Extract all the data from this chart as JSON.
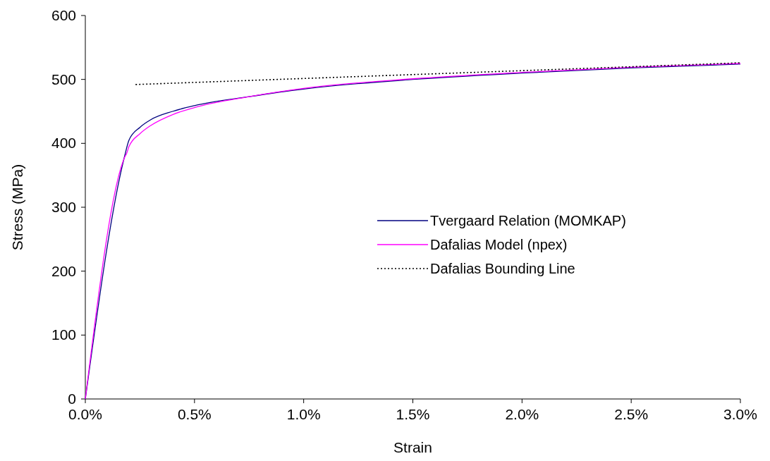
{
  "chart_data": {
    "type": "line",
    "xlabel": "Strain",
    "ylabel": "Stress (MPa)",
    "xlim": [
      0,
      0.03
    ],
    "ylim": [
      0,
      600
    ],
    "xticks": [
      {
        "value": 0,
        "label": "0.0%"
      },
      {
        "value": 0.005,
        "label": "0.5%"
      },
      {
        "value": 0.01,
        "label": "1.0%"
      },
      {
        "value": 0.015,
        "label": "1.5%"
      },
      {
        "value": 0.02,
        "label": "2.0%"
      },
      {
        "value": 0.025,
        "label": "2.5%"
      },
      {
        "value": 0.03,
        "label": "3.0%"
      }
    ],
    "yticks": [
      0,
      100,
      200,
      300,
      400,
      500,
      600
    ],
    "grid": false,
    "legend": "right",
    "series": [
      {
        "name": "Tvergaard Relation (MOMKAP)",
        "color": "#000080",
        "line_style": "solid",
        "x": [
          0,
          0.0018,
          0.002,
          0.0025,
          0.003,
          0.004,
          0.005,
          0.0075,
          0.01,
          0.015,
          0.02,
          0.025,
          0.03
        ],
        "values": [
          0,
          380,
          405,
          425,
          437,
          450,
          459,
          473,
          485,
          500,
          510,
          518,
          524
        ]
      },
      {
        "name": "Dafalias Model (npex)",
        "color": "#ff00ff",
        "line_style": "solid",
        "x": [
          0,
          0.0018,
          0.0019,
          0.002,
          0.0025,
          0.003,
          0.004,
          0.005,
          0.0075,
          0.01,
          0.015,
          0.02,
          0.025,
          0.03
        ],
        "values": [
          0,
          378,
          385,
          395,
          415,
          428,
          445,
          456,
          473,
          486,
          501,
          511,
          519,
          525
        ]
      },
      {
        "name": "Dafalias Bounding Line",
        "color": "#000000",
        "line_style": "dotted",
        "x": [
          0.0023,
          0.03
        ],
        "values": [
          492,
          526
        ]
      }
    ]
  }
}
